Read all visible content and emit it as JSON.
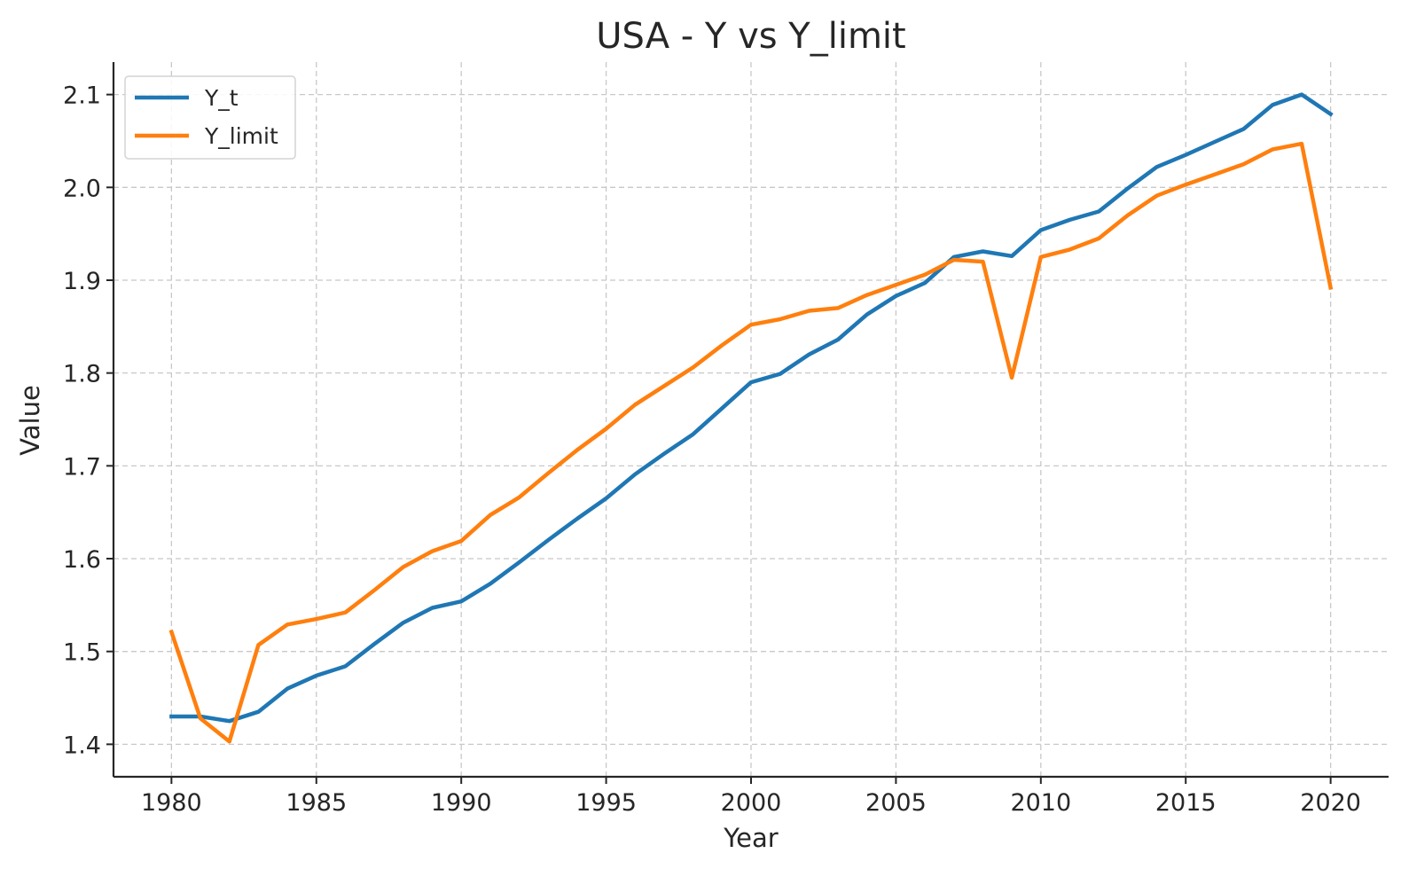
{
  "chart_data": {
    "type": "line",
    "title": "USA - Y vs Y_limit",
    "xlabel": "Year",
    "ylabel": "Value",
    "xlim": [
      1978,
      2022
    ],
    "ylim": [
      1.365,
      2.135
    ],
    "xticks": [
      1980,
      1985,
      1990,
      1995,
      2000,
      2005,
      2010,
      2015,
      2020
    ],
    "yticks": [
      1.4,
      1.5,
      1.6,
      1.7,
      1.8,
      1.9,
      2.0,
      2.1
    ],
    "ytick_labels": [
      "1.4",
      "1.5",
      "1.6",
      "1.7",
      "1.8",
      "1.9",
      "2.0",
      "2.1"
    ],
    "grid": true,
    "legend_position": "top-left",
    "x": [
      1980,
      1981,
      1982,
      1983,
      1984,
      1985,
      1986,
      1987,
      1988,
      1989,
      1990,
      1991,
      1992,
      1993,
      1994,
      1995,
      1996,
      1997,
      1998,
      1999,
      2000,
      2001,
      2002,
      2003,
      2004,
      2005,
      2006,
      2007,
      2008,
      2009,
      2010,
      2011,
      2012,
      2013,
      2014,
      2015,
      2016,
      2017,
      2018,
      2019,
      2020
    ],
    "series": [
      {
        "name": "Y_t",
        "color": "#1f77b4",
        "values": [
          1.43,
          1.43,
          1.425,
          1.435,
          1.46,
          1.474,
          1.484,
          1.508,
          1.531,
          1.547,
          1.554,
          1.573,
          1.596,
          1.62,
          1.643,
          1.665,
          1.691,
          1.713,
          1.734,
          1.762,
          1.79,
          1.799,
          1.82,
          1.836,
          1.863,
          1.883,
          1.897,
          1.925,
          1.931,
          1.926,
          1.954,
          1.965,
          1.974,
          1.999,
          2.022,
          2.035,
          2.049,
          2.063,
          2.089,
          2.1,
          2.079
        ]
      },
      {
        "name": "Y_limit",
        "color": "#ff7f0e",
        "values": [
          1.521,
          1.428,
          1.403,
          1.507,
          1.529,
          1.535,
          1.542,
          1.566,
          1.591,
          1.608,
          1.619,
          1.647,
          1.666,
          1.692,
          1.717,
          1.74,
          1.766,
          1.786,
          1.806,
          1.83,
          1.852,
          1.858,
          1.867,
          1.87,
          1.884,
          1.895,
          1.906,
          1.922,
          1.92,
          1.795,
          1.925,
          1.933,
          1.945,
          1.97,
          1.991,
          2.003,
          2.014,
          2.025,
          2.041,
          2.047,
          1.892
        ]
      }
    ]
  }
}
